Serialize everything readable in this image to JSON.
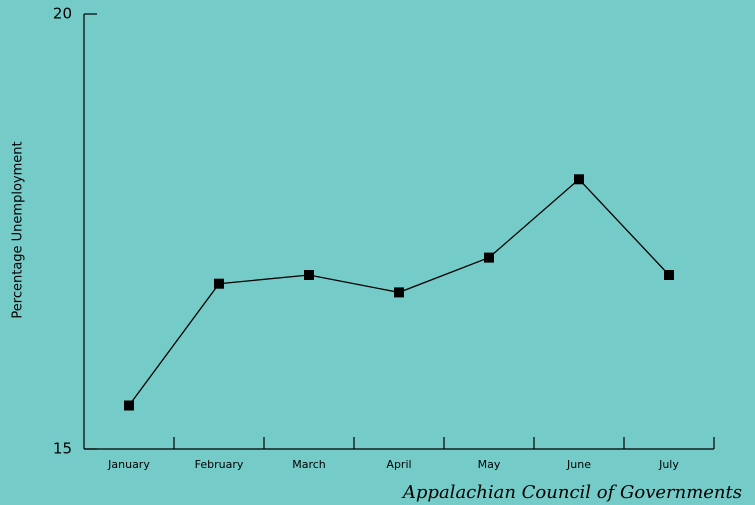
{
  "chart_data": {
    "type": "line",
    "y_label": "Percentage Unemployment",
    "source": "Appalachian Council of Governments",
    "categories": [
      "January",
      "February",
      "March",
      "April",
      "May",
      "June",
      "July"
    ],
    "values": [
      15.5,
      16.9,
      17.0,
      16.8,
      17.2,
      18.1,
      17.0
    ],
    "color": "#000000",
    "ylim": [
      15,
      20
    ],
    "yticks": [
      15,
      20
    ],
    "grid": false
  }
}
